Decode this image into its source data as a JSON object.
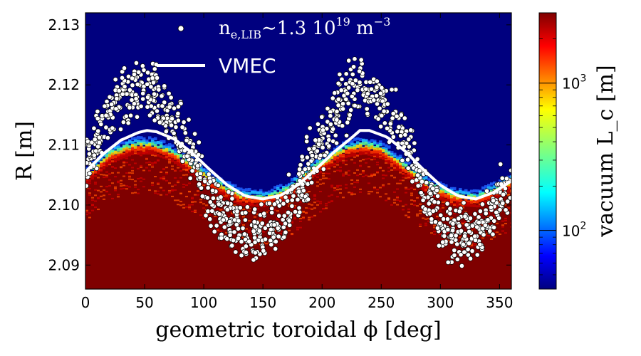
{
  "chart_data": {
    "type": "heatmap",
    "title": "",
    "xlabel": "geometric toroidal ϕ [deg]",
    "ylabel": "R [m]",
    "xlim": [
      0,
      360
    ],
    "ylim": [
      2.086,
      2.132
    ],
    "xticks": [
      0,
      50,
      100,
      150,
      200,
      250,
      300,
      350
    ],
    "yticks": [
      2.09,
      2.1,
      2.11,
      2.12,
      2.13
    ],
    "ytick_labels": [
      "2.09",
      "2.10",
      "2.11",
      "2.12",
      "2.13"
    ],
    "grid": false,
    "legend_position": "top-center",
    "heatmap": {
      "quantity": "vacuum L_c",
      "units": "m",
      "colormap": "jet",
      "scale": "log",
      "range": [
        40,
        3000
      ],
      "colorbar_label": "vacuum L_c [m]",
      "colorbar_ticks": [
        100,
        1000
      ],
      "colorbar_tick_labels": [
        "10^2",
        "10^3"
      ],
      "connection_boundary_R": [
        [
          0,
          2.105
        ],
        [
          20,
          2.1085
        ],
        [
          40,
          2.11
        ],
        [
          55,
          2.11
        ],
        [
          70,
          2.109
        ],
        [
          90,
          2.1065
        ],
        [
          110,
          2.1035
        ],
        [
          130,
          2.1015
        ],
        [
          150,
          2.1012
        ],
        [
          170,
          2.1025
        ],
        [
          190,
          2.106
        ],
        [
          220,
          2.1095
        ],
        [
          235,
          2.11
        ],
        [
          250,
          2.1092
        ],
        [
          270,
          2.1062
        ],
        [
          290,
          2.1032
        ],
        [
          310,
          2.1015
        ],
        [
          330,
          2.1012
        ],
        [
          350,
          2.103
        ],
        [
          360,
          2.104
        ]
      ]
    },
    "series": [
      {
        "name": "n_e,LIB ~ 1.3 10^19 m^-3",
        "kind": "scatter",
        "color": "#ffffff",
        "description_values": "scattered around an approximately sinusoidal band; band center given below",
        "band_center": [
          [
            0,
            2.107
          ],
          [
            15,
            2.113
          ],
          [
            30,
            2.118
          ],
          [
            45,
            2.12
          ],
          [
            60,
            2.118
          ],
          [
            75,
            2.114
          ],
          [
            90,
            2.108
          ],
          [
            105,
            2.102
          ],
          [
            120,
            2.097
          ],
          [
            135,
            2.095
          ],
          [
            150,
            2.095
          ],
          [
            165,
            2.097
          ],
          [
            180,
            2.102
          ],
          [
            195,
            2.109
          ],
          [
            210,
            2.115
          ],
          [
            225,
            2.119
          ],
          [
            240,
            2.119
          ],
          [
            255,
            2.116
          ],
          [
            270,
            2.111
          ],
          [
            285,
            2.104
          ],
          [
            300,
            2.098
          ],
          [
            315,
            2.095
          ],
          [
            330,
            2.095
          ],
          [
            345,
            2.099
          ],
          [
            360,
            2.104
          ]
        ],
        "band_halfwidth": 0.0045,
        "count": 1100
      },
      {
        "name": "VMEC",
        "kind": "line",
        "color": "#ffffff",
        "x": [
          0,
          15,
          30,
          45,
          52,
          60,
          75,
          90,
          105,
          120,
          135,
          150,
          165,
          180,
          195,
          210,
          225,
          232,
          240,
          255,
          270,
          285,
          300,
          315,
          330,
          345,
          360
        ],
        "y": [
          2.1055,
          2.1085,
          2.1108,
          2.1121,
          2.1124,
          2.1122,
          2.111,
          2.1087,
          2.1059,
          2.1033,
          2.1015,
          2.101,
          2.1016,
          2.1034,
          2.106,
          2.1088,
          2.1112,
          2.1124,
          2.1124,
          2.1113,
          2.109,
          2.106,
          2.1033,
          2.1015,
          2.101,
          2.1021,
          2.104
        ]
      }
    ],
    "legend": [
      {
        "label_main": "n",
        "label_sub": "e,LIB",
        "label_rest": "∼1.3 10",
        "label_sup": "19",
        "label_unit": " m",
        "label_unit_sup": "−3",
        "marker": "dot"
      },
      {
        "label": "VMEC",
        "marker": "line"
      }
    ]
  }
}
